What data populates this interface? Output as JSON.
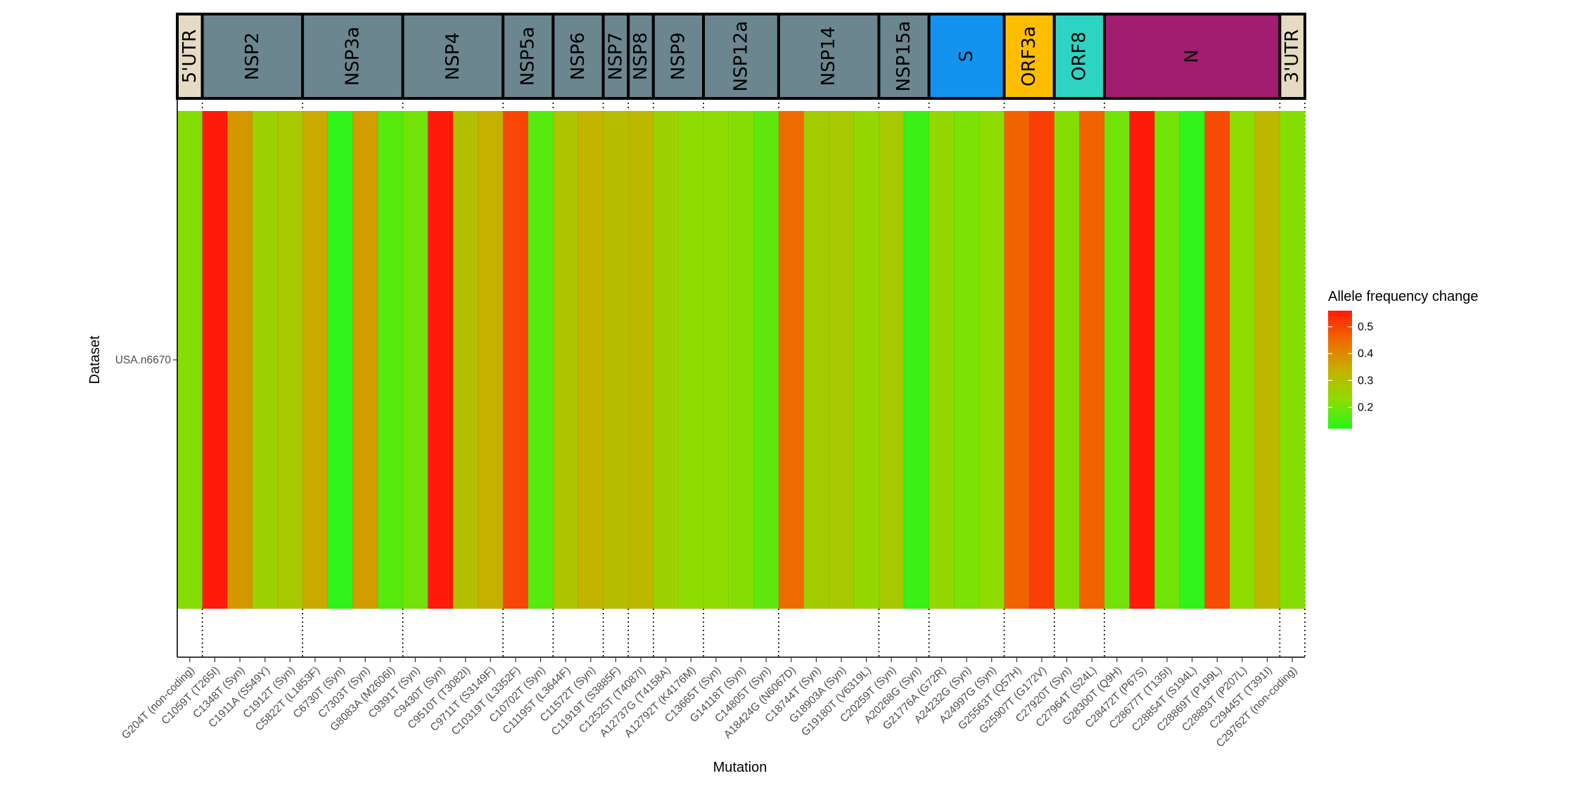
{
  "chart_data": {
    "type": "heatmap",
    "xlabel": "Mutation",
    "ylabel": "Dataset",
    "rows": [
      "USA.n6670"
    ],
    "legend": {
      "title": "Allele frequency change",
      "placement": "right",
      "min": 0.12,
      "max": 0.56,
      "ticks": [
        "0.2",
        "0.3",
        "0.4",
        "0.5"
      ],
      "tick_values": [
        0.2,
        0.3,
        0.4,
        0.5
      ],
      "low_color": "#26f51c",
      "mid_color": "#c6b000",
      "high_color": "#ff1a0a"
    },
    "mutations": [
      "G204T (non-coding)",
      "C1059T (T265I)",
      "C1348T (Syn)",
      "C1911A (S549Y)",
      "C1912T (Syn)",
      "C5822T (L1853F)",
      "C6730T (Syn)",
      "C7303T (Syn)",
      "G8083A (M2606I)",
      "C9391T (Syn)",
      "C9430T (Syn)",
      "C9510T (T3082I)",
      "C9711T (S3149F)",
      "C10319T (L3352F)",
      "C10702T (Syn)",
      "C11195T (L3644F)",
      "C11572T (Syn)",
      "C11919T (S3885F)",
      "C12525T (T4087I)",
      "A12737G (T4158A)",
      "A12792T (K4176M)",
      "C13665T (Syn)",
      "G14118T (Syn)",
      "C14805T (Syn)",
      "A18424G (N6067D)",
      "C18744T (Syn)",
      "G18903A (Syn)",
      "G19180T (V6319L)",
      "C20259T (Syn)",
      "A20268G (Syn)",
      "G21776A (G72R)",
      "A24232G (Syn)",
      "A24997G (Syn)",
      "G25563T (Q57H)",
      "G25907T (G172V)",
      "C27920T (Syn)",
      "C27964T (S24L)",
      "G28300T (Q9H)",
      "C28472T (P67S)",
      "C28677T (T135I)",
      "C28854T (S194L)",
      "C28869T (P199L)",
      "C28893T (P207L)",
      "C29445T (T391I)",
      "C29762T (non-coding)"
    ],
    "values": [
      0.22,
      0.56,
      0.38,
      0.26,
      0.28,
      0.35,
      0.13,
      0.37,
      0.17,
      0.2,
      0.56,
      0.3,
      0.34,
      0.5,
      0.17,
      0.29,
      0.33,
      0.31,
      0.32,
      0.26,
      0.23,
      0.23,
      0.22,
      0.18,
      0.45,
      0.27,
      0.28,
      0.24,
      0.28,
      0.14,
      0.24,
      0.21,
      0.23,
      0.46,
      0.51,
      0.22,
      0.46,
      0.2,
      0.56,
      0.2,
      0.13,
      0.49,
      0.23,
      0.32,
      0.22
    ],
    "genes": [
      {
        "name": "5'UTR",
        "start": 0,
        "end": 1,
        "color": "#e5dbc2"
      },
      {
        "name": "NSP2",
        "start": 1,
        "end": 5,
        "color": "#6c8690"
      },
      {
        "name": "NSP3a",
        "start": 5,
        "end": 9,
        "color": "#6c8690"
      },
      {
        "name": "NSP4",
        "start": 9,
        "end": 13,
        "color": "#6c8690"
      },
      {
        "name": "NSP5a",
        "start": 13,
        "end": 15,
        "color": "#6c8690"
      },
      {
        "name": "NSP6",
        "start": 15,
        "end": 17,
        "color": "#6c8690"
      },
      {
        "name": "NSP7",
        "start": 17,
        "end": 18,
        "color": "#6c8690"
      },
      {
        "name": "NSP8",
        "start": 18,
        "end": 19,
        "color": "#6c8690"
      },
      {
        "name": "NSP9",
        "start": 19,
        "end": 21,
        "color": "#6c8690"
      },
      {
        "name": "NSP12a",
        "start": 21,
        "end": 24,
        "color": "#6c8690"
      },
      {
        "name": "NSP14",
        "start": 24,
        "end": 28,
        "color": "#6c8690"
      },
      {
        "name": "NSP15a",
        "start": 28,
        "end": 30,
        "color": "#6c8690"
      },
      {
        "name": "S",
        "start": 30,
        "end": 33,
        "color": "#1492f0"
      },
      {
        "name": "ORF3a",
        "start": 33,
        "end": 35,
        "color": "#ffbd00"
      },
      {
        "name": "ORF8",
        "start": 35,
        "end": 37,
        "color": "#2dd4c4"
      },
      {
        "name": "N",
        "start": 37,
        "end": 44,
        "color": "#a11d70"
      },
      {
        "name": "3'UTR",
        "start": 44,
        "end": 45,
        "color": "#e5dbc2"
      }
    ]
  }
}
